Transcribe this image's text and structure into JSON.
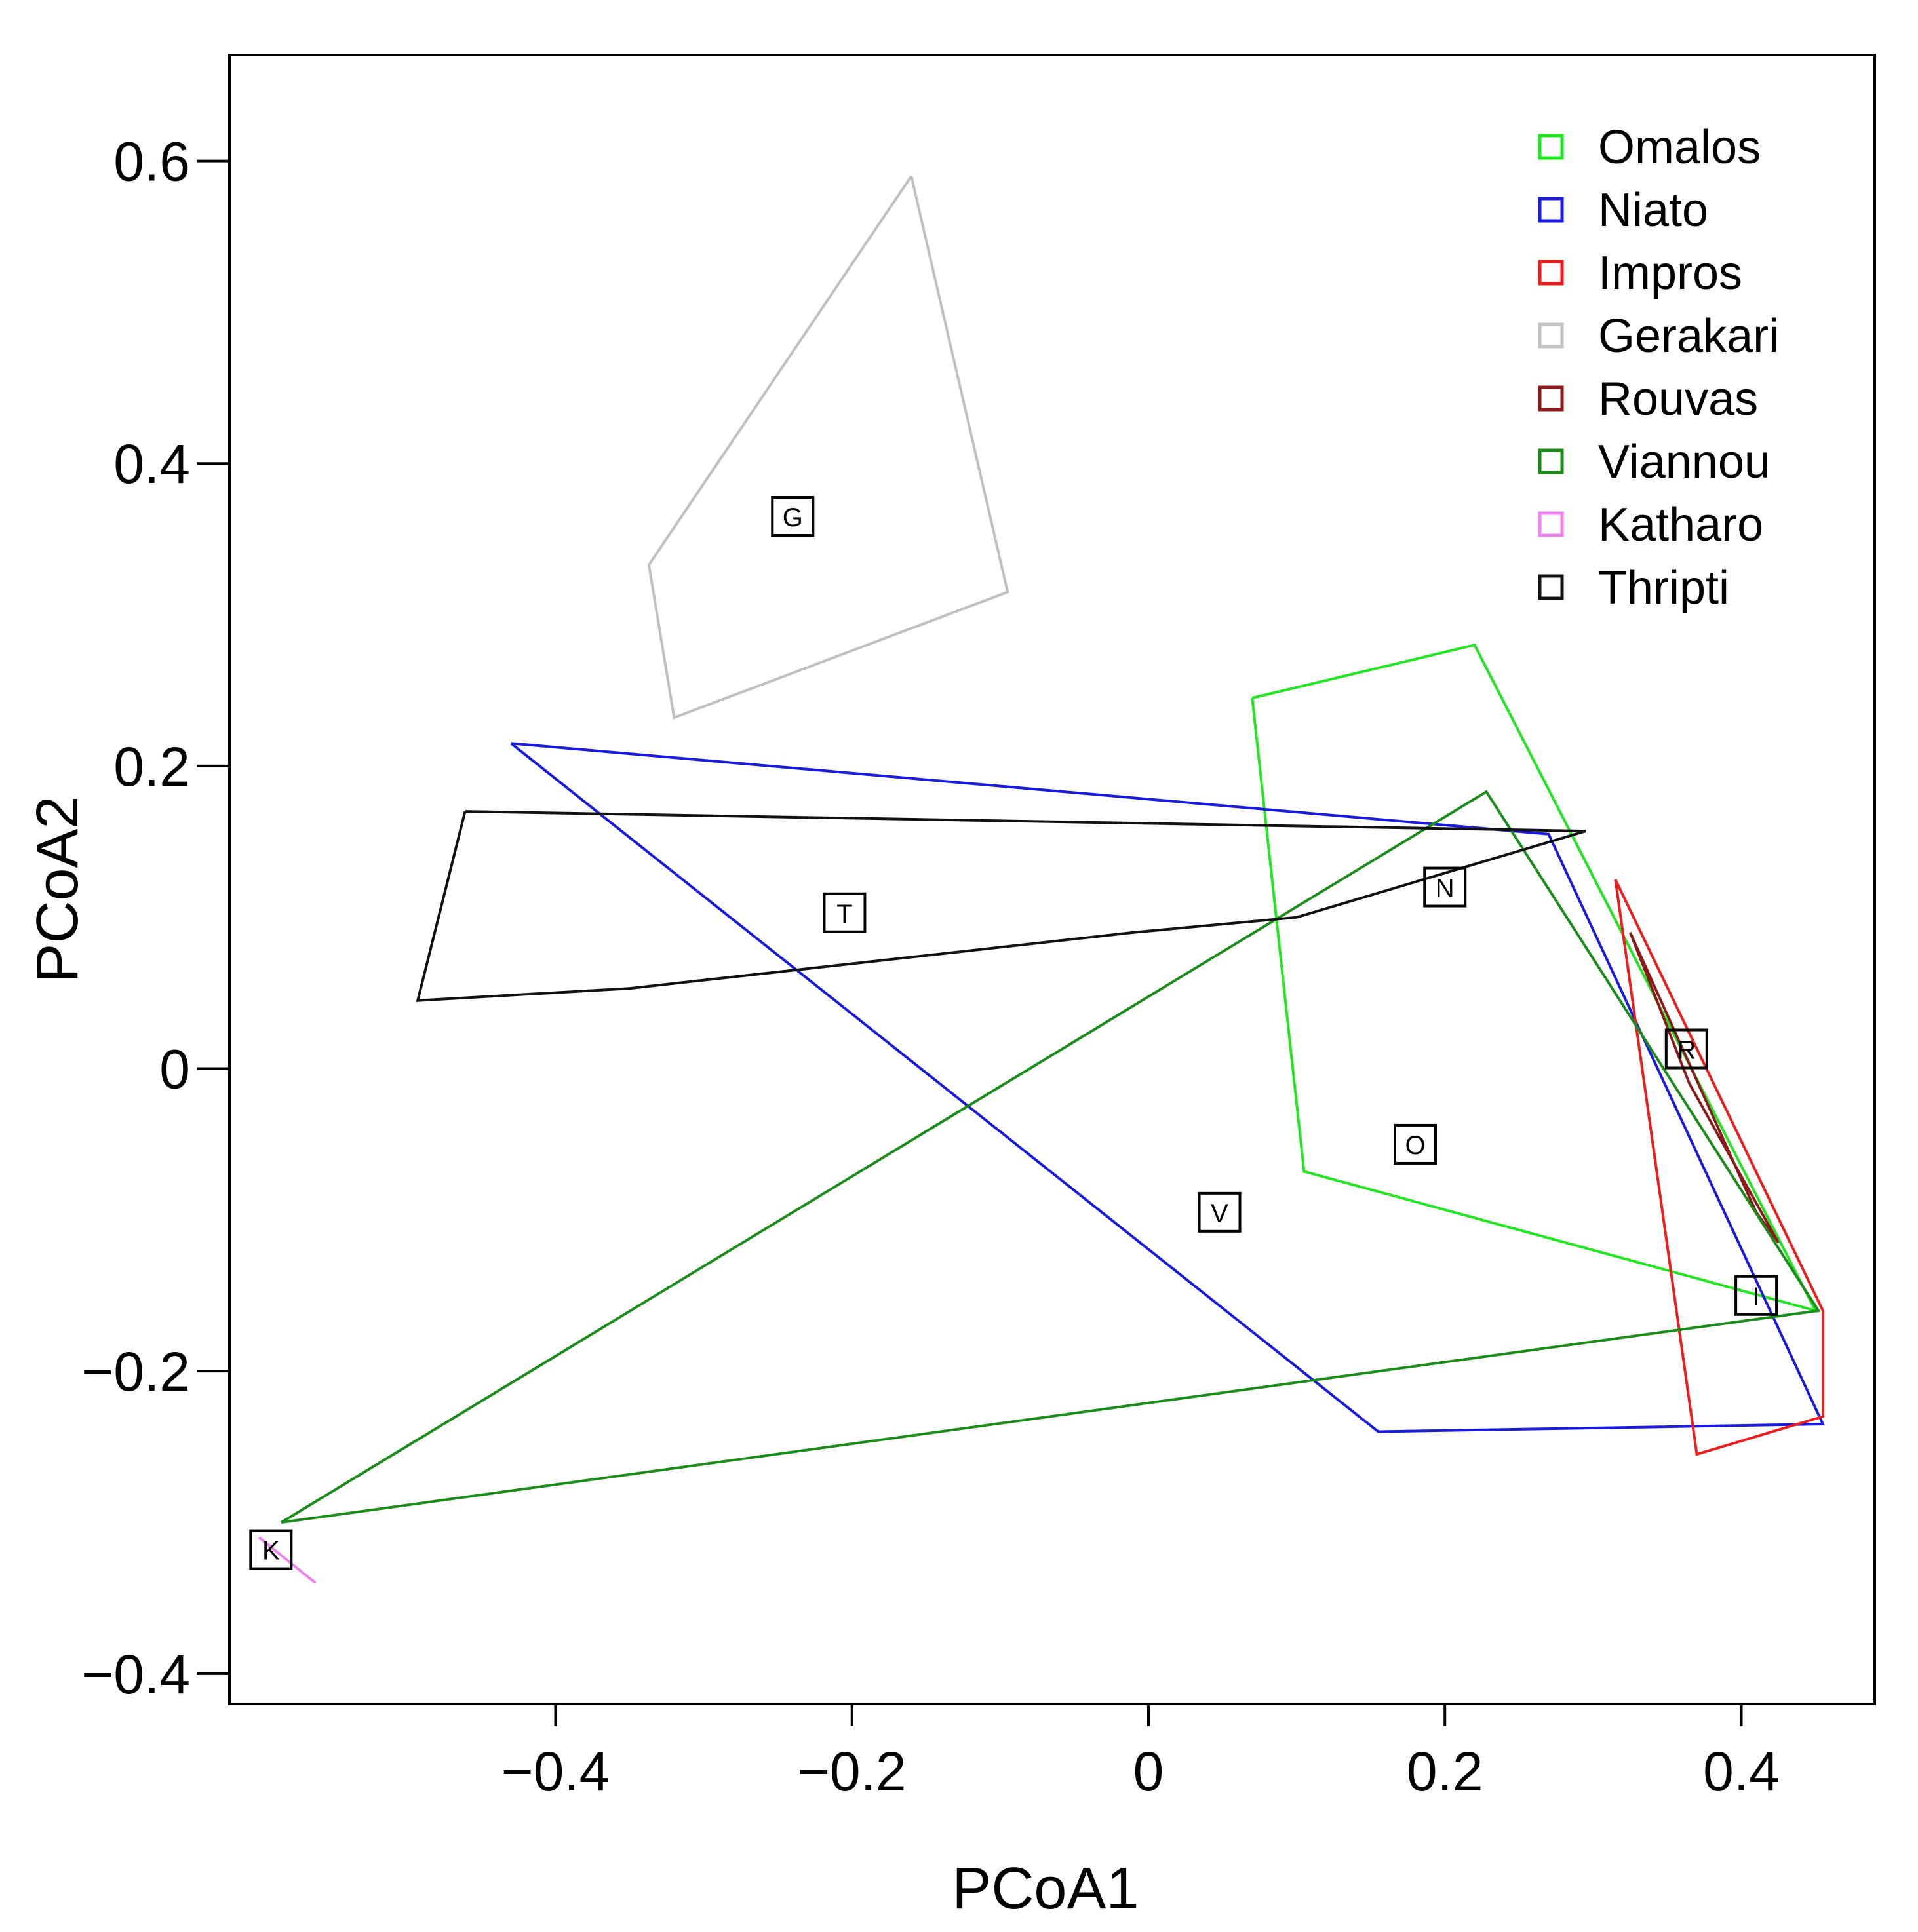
{
  "chart_data": {
    "type": "scatter",
    "title": "",
    "xlabel": "PCoA1",
    "ylabel": "PCoA2",
    "xlim": [
      -0.62,
      0.49
    ],
    "ylim": [
      -0.42,
      0.67
    ],
    "xticks": [
      -0.4,
      -0.2,
      0,
      0.2,
      0.4
    ],
    "yticks": [
      -0.4,
      -0.2,
      0,
      0.2,
      0.4,
      0.6
    ],
    "xtick_labels": [
      "−0.4",
      "−0.2",
      "0",
      "0.2",
      "0.4"
    ],
    "ytick_labels": [
      "−0.4",
      "−0.2",
      "0",
      "0.2",
      "0.4",
      "0.6"
    ],
    "legend_position": "top-right",
    "series": [
      {
        "name": "Omalos",
        "color": "#22e622",
        "centroid_label": "O",
        "centroid": [
          0.18,
          -0.05
        ],
        "hull": [
          [
            0.07,
            0.245
          ],
          [
            0.22,
            0.28
          ],
          [
            0.45,
            -0.16
          ],
          [
            0.105,
            -0.068
          ],
          [
            0.07,
            0.245
          ]
        ]
      },
      {
        "name": "Niato",
        "color": "#1a1adf",
        "centroid_label": "N",
        "centroid": [
          0.2,
          0.12
        ],
        "hull": [
          [
            -0.43,
            0.215
          ],
          [
            0.27,
            0.155
          ],
          [
            0.455,
            -0.235
          ],
          [
            0.155,
            -0.24
          ],
          [
            -0.43,
            0.215
          ]
        ]
      },
      {
        "name": "Impros",
        "color": "#ee1c1c",
        "centroid_label": "I",
        "centroid": [
          0.41,
          -0.15
        ],
        "hull": [
          [
            0.315,
            0.125
          ],
          [
            0.455,
            -0.16
          ],
          [
            0.455,
            -0.23
          ],
          [
            0.37,
            -0.255
          ],
          [
            0.315,
            0.125
          ]
        ]
      },
      {
        "name": "Gerakari",
        "color": "#c0c0c0",
        "centroid_label": "G",
        "centroid": [
          -0.24,
          0.365
        ],
        "hull": [
          [
            -0.16,
            0.59
          ],
          [
            -0.095,
            0.315
          ],
          [
            -0.32,
            0.232
          ],
          [
            -0.337,
            0.333
          ],
          [
            -0.16,
            0.59
          ]
        ]
      },
      {
        "name": "Rouvas",
        "color": "#8b1a1a",
        "centroid_label": "R",
        "centroid": [
          0.363,
          0.013
        ],
        "hull": [
          [
            0.325,
            0.09
          ],
          [
            0.41,
            -0.095
          ],
          [
            0.425,
            -0.115
          ],
          [
            0.365,
            -0.01
          ],
          [
            0.325,
            0.09
          ]
        ]
      },
      {
        "name": "Viannou",
        "color": "#1a8c1a",
        "centroid_label": "V",
        "centroid": [
          0.048,
          -0.095
        ],
        "hull": [
          [
            -0.585,
            -0.3
          ],
          [
            0.228,
            0.183
          ],
          [
            0.452,
            -0.16
          ],
          [
            -0.585,
            -0.3
          ]
        ]
      },
      {
        "name": "Katharo",
        "color": "#ee82ee",
        "centroid_label": "K",
        "centroid": [
          -0.592,
          -0.318
        ],
        "hull": [
          [
            -0.6,
            -0.31
          ],
          [
            -0.562,
            -0.34
          ]
        ]
      },
      {
        "name": "Thripti",
        "color": "#111111",
        "centroid_label": "T",
        "centroid": [
          -0.205,
          0.103
        ],
        "hull": [
          [
            -0.461,
            0.17
          ],
          [
            0.295,
            0.157
          ],
          [
            0.1,
            0.1
          ],
          [
            -0.01,
            0.09
          ],
          [
            -0.35,
            0.053
          ],
          [
            -0.493,
            0.045
          ],
          [
            -0.461,
            0.17
          ]
        ]
      }
    ]
  }
}
